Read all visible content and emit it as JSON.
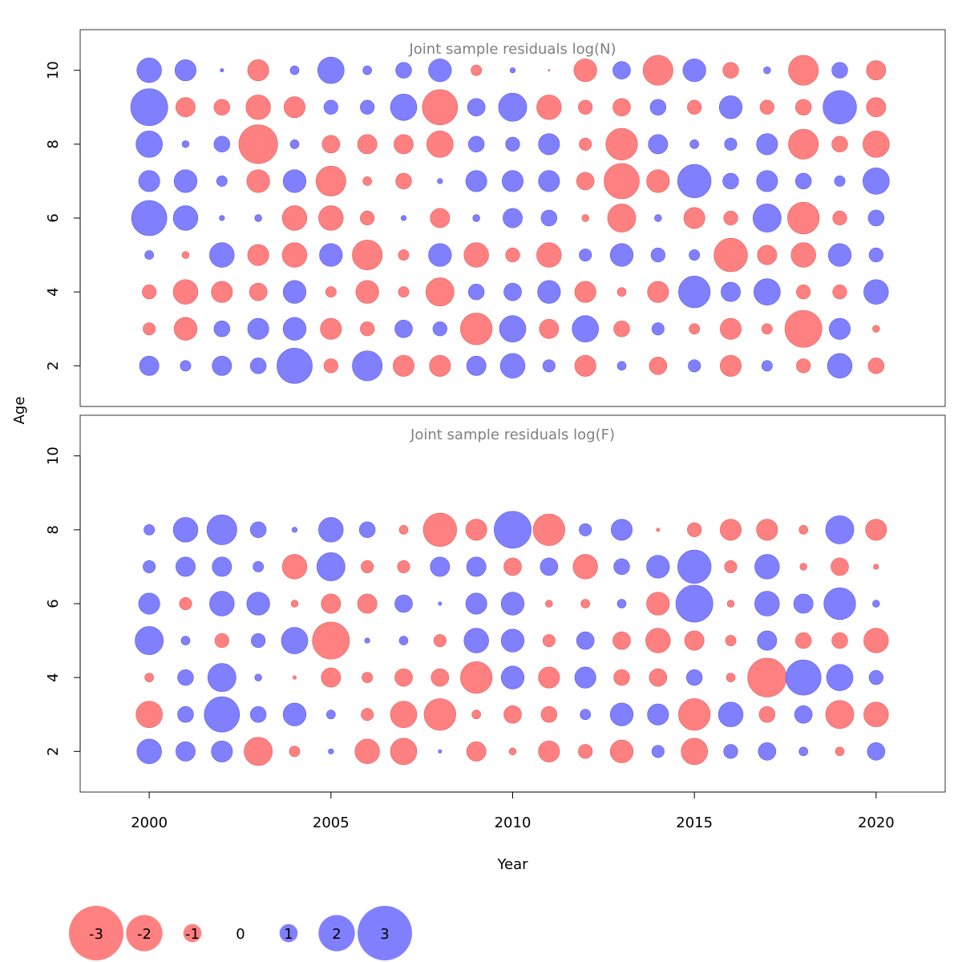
{
  "chart_data": {
    "type": "bubble",
    "xlabel": "Year",
    "ylabel": "Age",
    "xlim": [
      1998.1,
      2021.9
    ],
    "x_ticks": [
      "2000",
      "2005",
      "2010",
      "2015",
      "2020"
    ],
    "y_ticks": [
      "2",
      "4",
      "6",
      "8",
      "10"
    ],
    "years": [
      2000,
      2001,
      2002,
      2003,
      2004,
      2005,
      2006,
      2007,
      2008,
      2009,
      2010,
      2011,
      2012,
      2013,
      2014,
      2015,
      2016,
      2017,
      2018,
      2019,
      2020
    ],
    "colors": {
      "negative": "#ff8080",
      "positive": "#8080ff"
    },
    "panels": [
      {
        "title": "Joint sample residuals log(N)",
        "ylim": [
          0.9,
          11.1
        ],
        "ages": [
          2,
          3,
          4,
          5,
          6,
          7,
          8,
          9,
          10
        ],
        "residuals": [
          [
            1.1,
            0.6,
            1.1,
            0.9,
            2.0,
            -0.8,
            1.7,
            -1.2,
            -1.2,
            1.1,
            1.4,
            0.7,
            -1.2,
            0.5,
            -1.0,
            0.7,
            -1.2,
            0.6,
            -0.8,
            1.4,
            -0.9
          ],
          [
            -0.7,
            -1.3,
            0.9,
            1.2,
            1.3,
            -1.2,
            -0.8,
            1.0,
            0.8,
            -1.8,
            1.5,
            -1.1,
            1.5,
            -0.9,
            0.7,
            -0.6,
            -1.2,
            -0.6,
            -2.1,
            1.2,
            -0.4
          ],
          [
            -0.8,
            -1.4,
            -1.2,
            -1.0,
            1.3,
            -0.6,
            -1.3,
            -0.6,
            -1.6,
            0.9,
            1.0,
            1.3,
            -1.2,
            -0.5,
            -1.2,
            1.8,
            1.1,
            1.5,
            -0.8,
            -0.8,
            1.4
          ],
          [
            0.5,
            -0.4,
            1.4,
            -1.2,
            -1.4,
            1.3,
            -1.7,
            -0.6,
            1.3,
            -1.4,
            -0.8,
            -1.4,
            0.7,
            1.3,
            0.8,
            0.6,
            -1.9,
            -1.1,
            -1.4,
            1.3,
            0.8
          ],
          [
            2.0,
            1.4,
            0.3,
            0.4,
            -1.4,
            -1.4,
            -0.8,
            0.3,
            -1.1,
            0.4,
            1.1,
            0.9,
            -0.4,
            -1.6,
            0.4,
            -1.2,
            -0.8,
            1.6,
            -1.8,
            -0.8,
            0.9
          ],
          [
            1.2,
            1.3,
            0.6,
            -1.3,
            1.3,
            -1.7,
            -0.5,
            -0.9,
            0.3,
            1.2,
            1.2,
            1.2,
            -1.0,
            -2.0,
            -1.3,
            1.9,
            0.9,
            1.2,
            0.9,
            0.6,
            1.5
          ],
          [
            1.5,
            0.4,
            0.9,
            -2.2,
            0.5,
            -1.0,
            -1.1,
            -1.1,
            -1.5,
            0.9,
            0.8,
            1.2,
            -0.7,
            -1.8,
            1.1,
            0.5,
            0.7,
            1.2,
            -1.7,
            -0.9,
            -1.5
          ],
          [
            2.1,
            -1.1,
            -0.9,
            -1.4,
            -1.2,
            0.8,
            0.8,
            1.5,
            -2.0,
            1.0,
            1.6,
            -1.4,
            -0.8,
            -1.0,
            0.9,
            -0.8,
            1.3,
            -0.8,
            -0.9,
            1.9,
            -1.1
          ],
          [
            1.4,
            1.2,
            0.2,
            -1.2,
            0.5,
            1.5,
            0.5,
            0.9,
            1.3,
            -0.6,
            0.3,
            -0.1,
            -1.3,
            1.0,
            -1.7,
            1.3,
            -0.9,
            0.4,
            -1.7,
            0.9,
            -1.1
          ]
        ]
      },
      {
        "title": "Joint sample residuals log(F)",
        "ylim": [
          0.9,
          11.1
        ],
        "ages": [
          2,
          3,
          4,
          5,
          6,
          7,
          8
        ],
        "residuals": [
          [
            1.4,
            1.1,
            1.2,
            -1.6,
            -0.6,
            0.3,
            -1.4,
            -1.5,
            0.2,
            -1.1,
            -0.4,
            -1.2,
            -0.8,
            -1.3,
            0.7,
            -1.5,
            0.8,
            1.0,
            0.5,
            -0.5,
            1.0
          ],
          [
            -1.5,
            0.9,
            2.0,
            0.9,
            1.3,
            0.5,
            -0.7,
            -1.5,
            -1.8,
            -0.5,
            -1.0,
            -0.9,
            0.6,
            1.3,
            1.2,
            -1.8,
            1.4,
            -0.9,
            1.0,
            -1.6,
            -1.4
          ],
          [
            -0.5,
            0.9,
            1.6,
            0.4,
            -0.2,
            -1.1,
            -0.6,
            -1.0,
            -1.0,
            -1.8,
            1.3,
            -1.2,
            1.2,
            -0.9,
            -1.0,
            0.9,
            -0.5,
            -2.2,
            2.0,
            1.5,
            0.8
          ],
          [
            1.6,
            0.5,
            -0.8,
            0.8,
            1.5,
            -2.1,
            0.3,
            0.5,
            -0.7,
            1.4,
            1.3,
            -0.7,
            1.0,
            -1.0,
            -1.4,
            -1.1,
            -0.6,
            1.1,
            -0.9,
            -0.9,
            -1.4
          ],
          [
            1.2,
            -0.7,
            1.4,
            1.3,
            -0.4,
            -1.1,
            -1.1,
            1.0,
            0.2,
            1.2,
            1.3,
            -0.4,
            -0.5,
            0.5,
            -1.3,
            2.1,
            -0.4,
            1.4,
            1.1,
            1.8,
            0.4
          ],
          [
            0.7,
            1.1,
            1.1,
            0.6,
            -1.4,
            1.6,
            -0.7,
            -0.7,
            1.1,
            1.1,
            -1.0,
            1.0,
            -1.4,
            0.9,
            1.3,
            1.9,
            -0.7,
            1.4,
            -0.4,
            -1.0,
            -0.3
          ],
          [
            0.6,
            1.4,
            1.7,
            0.9,
            0.3,
            1.4,
            0.9,
            -0.5,
            -1.9,
            -1.2,
            2.1,
            -1.8,
            0.7,
            1.2,
            -0.2,
            -0.8,
            -1.2,
            -1.2,
            -0.5,
            1.6,
            -1.2
          ]
        ]
      }
    ],
    "legend": [
      "-3",
      "-2",
      "-1",
      "0",
      "1",
      "2",
      "3"
    ]
  }
}
